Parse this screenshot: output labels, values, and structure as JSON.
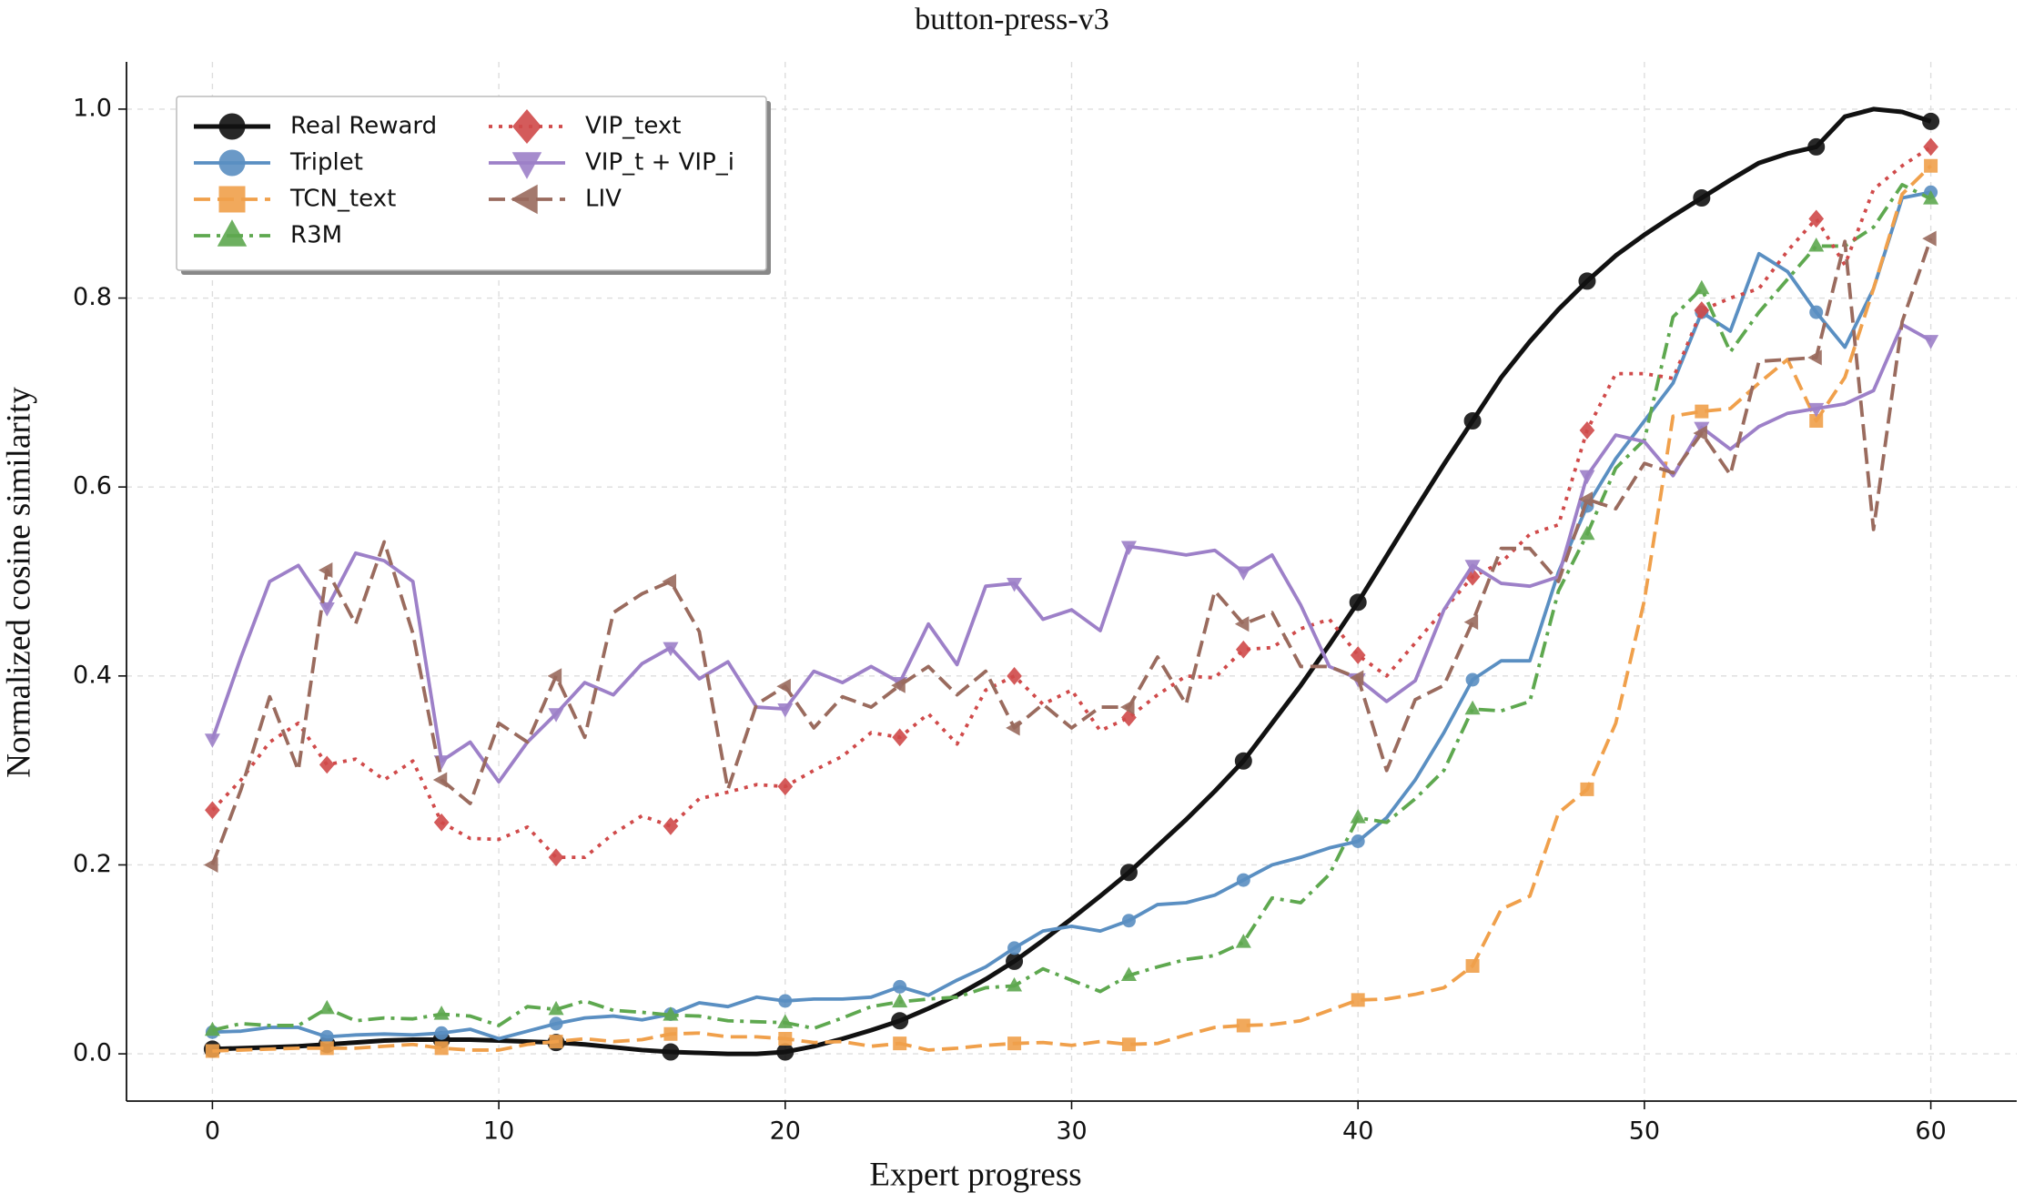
{
  "chart_data": {
    "type": "line",
    "title": "button-press-v3",
    "xlabel": "Expert progress",
    "ylabel": "Normalized cosine similarity",
    "x": [
      0,
      1,
      2,
      3,
      4,
      5,
      6,
      7,
      8,
      9,
      10,
      11,
      12,
      13,
      14,
      15,
      16,
      17,
      18,
      19,
      20,
      21,
      22,
      23,
      24,
      25,
      26,
      27,
      28,
      29,
      30,
      31,
      32,
      33,
      34,
      35,
      36,
      37,
      38,
      39,
      40,
      41,
      42,
      43,
      44,
      45,
      46,
      47,
      48,
      49,
      50,
      51,
      52,
      53,
      54,
      55,
      56,
      57,
      58,
      59,
      60
    ],
    "xlim": [
      -3,
      63
    ],
    "xticks": [
      0,
      10,
      20,
      30,
      40,
      50,
      60
    ],
    "ylim": [
      -0.05,
      1.05
    ],
    "yticks": [
      {
        "value": 0,
        "label": "0.0"
      },
      {
        "value": 0.2,
        "label": "0.2"
      },
      {
        "value": 0.4,
        "label": "0.4"
      },
      {
        "value": 0.6,
        "label": "0.6"
      },
      {
        "value": 0.8,
        "label": "0.8"
      },
      {
        "value": 1,
        "label": "1.0"
      }
    ],
    "grid": true,
    "legend": "upper left",
    "marker_every": 4,
    "series": [
      {
        "name": "Real Reward",
        "color": "#111111",
        "linestyle": "solid",
        "marker": "circle",
        "values": [
          0.005,
          0.006,
          0.007,
          0.008,
          0.01,
          0.012,
          0.014,
          0.015,
          0.015,
          0.015,
          0.014,
          0.013,
          0.012,
          0.01,
          0.007,
          0.004,
          0.002,
          0.001,
          0,
          0,
          0.002,
          0.008,
          0.016,
          0.025,
          0.035,
          0.048,
          0.062,
          0.079,
          0.098,
          0.12,
          0.143,
          0.167,
          0.192,
          0.22,
          0.248,
          0.278,
          0.31,
          0.35,
          0.39,
          0.433,
          0.478,
          0.527,
          0.576,
          0.624,
          0.67,
          0.716,
          0.754,
          0.788,
          0.818,
          0.845,
          0.867,
          0.887,
          0.906,
          0.925,
          0.943,
          0.953,
          0.96,
          0.992,
          1.0,
          0.997,
          0.987
        ]
      },
      {
        "name": "Triplet",
        "color": "#5a8fc2",
        "linestyle": "solid",
        "marker": "circle",
        "values": [
          0.023,
          0.024,
          0.028,
          0.028,
          0.018,
          0.02,
          0.021,
          0.02,
          0.022,
          0.026,
          0.016,
          0.024,
          0.032,
          0.038,
          0.04,
          0.036,
          0.042,
          0.054,
          0.05,
          0.06,
          0.056,
          0.058,
          0.058,
          0.06,
          0.071,
          0.062,
          0.078,
          0.092,
          0.112,
          0.13,
          0.135,
          0.13,
          0.141,
          0.158,
          0.16,
          0.168,
          0.184,
          0.2,
          0.208,
          0.218,
          0.225,
          0.25,
          0.29,
          0.34,
          0.396,
          0.416,
          0.416,
          0.51,
          0.58,
          0.63,
          0.67,
          0.71,
          0.785,
          0.765,
          0.847,
          0.828,
          0.785,
          0.748,
          0.81,
          0.906,
          0.912
        ]
      },
      {
        "name": "TCN_text",
        "color": "#f0a04b",
        "linestyle": "dashed",
        "marker": "square",
        "values": [
          0.003,
          0.004,
          0.005,
          0.006,
          0.006,
          0.006,
          0.008,
          0.01,
          0.006,
          0.004,
          0.004,
          0.01,
          0.013,
          0.016,
          0.013,
          0.015,
          0.021,
          0.022,
          0.018,
          0.018,
          0.016,
          0.012,
          0.013,
          0.008,
          0.011,
          0.004,
          0.006,
          0.009,
          0.011,
          0.012,
          0.009,
          0.013,
          0.01,
          0.011,
          0.02,
          0.028,
          0.03,
          0.031,
          0.035,
          0.046,
          0.057,
          0.058,
          0.063,
          0.07,
          0.093,
          0.153,
          0.167,
          0.255,
          0.28,
          0.35,
          0.48,
          0.675,
          0.68,
          0.683,
          0.71,
          0.735,
          0.67,
          0.716,
          0.81,
          0.91,
          0.94
        ]
      },
      {
        "name": "R3M",
        "color": "#5ea84f",
        "linestyle": "dashdot",
        "marker": "triangle-up",
        "values": [
          0.025,
          0.032,
          0.03,
          0.03,
          0.048,
          0.035,
          0.038,
          0.037,
          0.042,
          0.04,
          0.03,
          0.05,
          0.047,
          0.056,
          0.046,
          0.044,
          0.041,
          0.04,
          0.035,
          0.034,
          0.033,
          0.027,
          0.038,
          0.05,
          0.055,
          0.058,
          0.06,
          0.07,
          0.072,
          0.09,
          0.078,
          0.066,
          0.083,
          0.092,
          0.1,
          0.104,
          0.118,
          0.165,
          0.16,
          0.19,
          0.25,
          0.245,
          0.27,
          0.3,
          0.365,
          0.363,
          0.373,
          0.49,
          0.55,
          0.62,
          0.65,
          0.78,
          0.81,
          0.743,
          0.785,
          0.82,
          0.855,
          0.855,
          0.875,
          0.92,
          0.905
        ]
      },
      {
        "name": "VIP_text",
        "color": "#d04a4a",
        "linestyle": "dotted",
        "marker": "diamond",
        "values": [
          0.258,
          0.29,
          0.33,
          0.35,
          0.306,
          0.312,
          0.29,
          0.31,
          0.245,
          0.228,
          0.227,
          0.24,
          0.208,
          0.208,
          0.233,
          0.252,
          0.241,
          0.27,
          0.277,
          0.285,
          0.283,
          0.3,
          0.315,
          0.34,
          0.335,
          0.36,
          0.328,
          0.385,
          0.4,
          0.37,
          0.385,
          0.342,
          0.356,
          0.38,
          0.4,
          0.398,
          0.428,
          0.43,
          0.45,
          0.46,
          0.422,
          0.4,
          0.435,
          0.47,
          0.505,
          0.52,
          0.55,
          0.56,
          0.66,
          0.72,
          0.72,
          0.715,
          0.787,
          0.8,
          0.81,
          0.85,
          0.884,
          0.835,
          0.915,
          0.94,
          0.96
        ]
      },
      {
        "name": "VIP_t + VIP_i",
        "color": "#9d80c8",
        "linestyle": "solid",
        "marker": "triangle-down",
        "values": [
          0.333,
          0.42,
          0.5,
          0.517,
          0.472,
          0.53,
          0.522,
          0.5,
          0.31,
          0.33,
          0.288,
          0.33,
          0.36,
          0.393,
          0.38,
          0.413,
          0.43,
          0.397,
          0.415,
          0.367,
          0.365,
          0.405,
          0.393,
          0.41,
          0.393,
          0.455,
          0.412,
          0.495,
          0.498,
          0.46,
          0.47,
          0.448,
          0.537,
          0.533,
          0.528,
          0.533,
          0.51,
          0.528,
          0.475,
          0.41,
          0.397,
          0.373,
          0.395,
          0.47,
          0.517,
          0.498,
          0.495,
          0.505,
          0.612,
          0.655,
          0.648,
          0.612,
          0.663,
          0.64,
          0.664,
          0.678,
          0.683,
          0.688,
          0.702,
          0.772,
          0.755
        ]
      },
      {
        "name": "LIV",
        "color": "#9a6b5e",
        "linestyle": "dashed",
        "marker": "triangle-left",
        "values": [
          0.2,
          0.28,
          0.378,
          0.3,
          0.512,
          0.455,
          0.542,
          0.445,
          0.29,
          0.265,
          0.35,
          0.33,
          0.4,
          0.335,
          0.467,
          0.487,
          0.5,
          0.447,
          0.28,
          0.37,
          0.389,
          0.345,
          0.378,
          0.367,
          0.39,
          0.41,
          0.38,
          0.405,
          0.345,
          0.37,
          0.345,
          0.367,
          0.367,
          0.42,
          0.37,
          0.49,
          0.455,
          0.467,
          0.41,
          0.41,
          0.398,
          0.3,
          0.375,
          0.39,
          0.457,
          0.535,
          0.535,
          0.5,
          0.587,
          0.577,
          0.625,
          0.615,
          0.657,
          0.613,
          0.733,
          0.735,
          0.737,
          0.86,
          0.555,
          0.775,
          0.863
        ]
      }
    ]
  }
}
